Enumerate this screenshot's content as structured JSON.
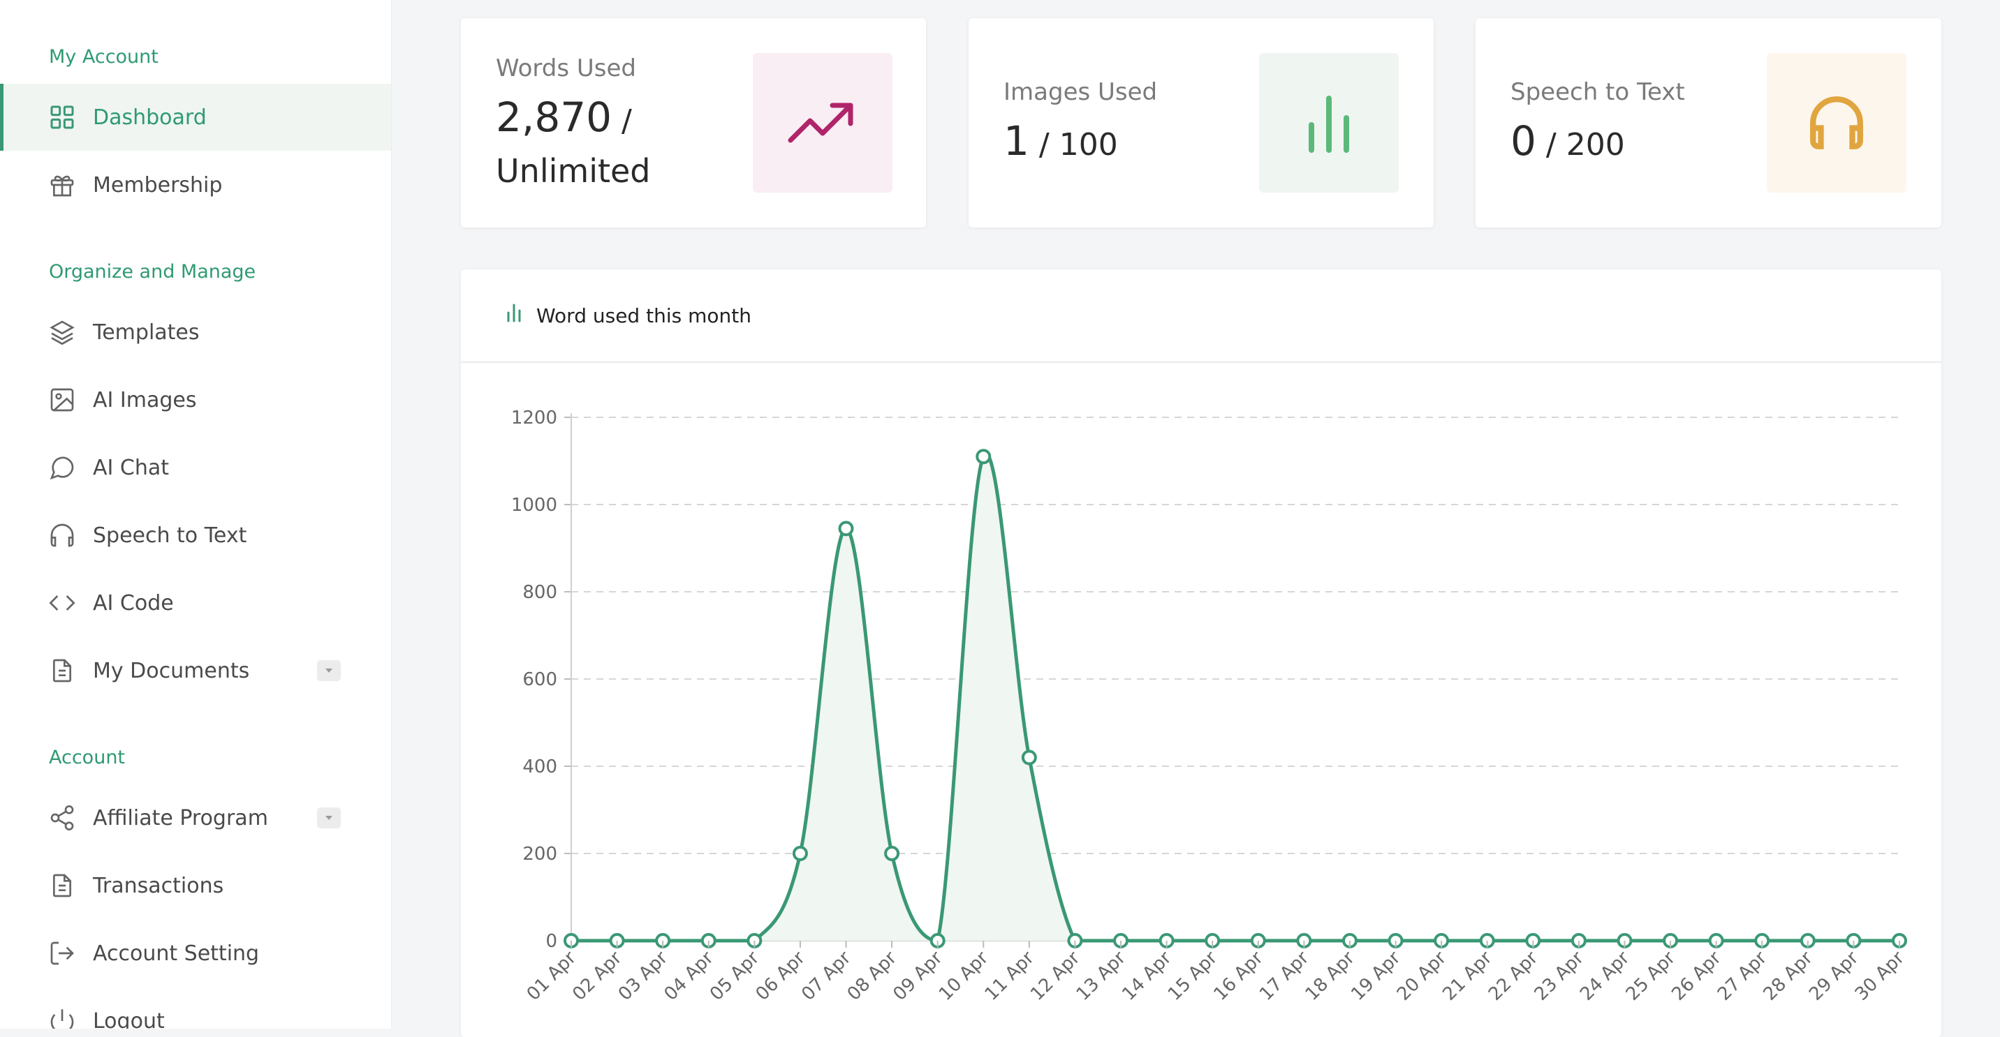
{
  "sidebar": {
    "sections": [
      {
        "title": "My Account"
      },
      {
        "title": "Organize and Manage"
      },
      {
        "title": "Account"
      }
    ],
    "items": [
      {
        "label": "Dashboard",
        "icon": "grid-icon",
        "active": true
      },
      {
        "label": "Membership",
        "icon": "gift-icon"
      },
      {
        "label": "Templates",
        "icon": "layers-icon"
      },
      {
        "label": "AI Images",
        "icon": "image-icon"
      },
      {
        "label": "AI Chat",
        "icon": "chat-bubble-icon"
      },
      {
        "label": "Speech to Text",
        "icon": "headphones-icon"
      },
      {
        "label": "AI Code",
        "icon": "code-icon"
      },
      {
        "label": "My Documents",
        "icon": "document-icon",
        "dropdown": true
      },
      {
        "label": "Affiliate Program",
        "icon": "share-icon",
        "dropdown": true
      },
      {
        "label": "Transactions",
        "icon": "document-icon"
      },
      {
        "label": "Account Setting",
        "icon": "logout-arrow-icon"
      },
      {
        "label": "Logout",
        "icon": "power-icon"
      }
    ]
  },
  "cards": {
    "words": {
      "label": "Words Used",
      "value": "2,870",
      "limit": "Unlimited",
      "icon": "trend-up-icon",
      "accent": "#b0246a",
      "bg": "#f9eef4"
    },
    "images": {
      "label": "Images Used",
      "value": "1",
      "limit": "100",
      "icon": "bar-chart-icon",
      "accent": "#5cb87a",
      "bg": "#eff6f1"
    },
    "speech": {
      "label": "Speech to Text",
      "value": "0",
      "limit": "200",
      "icon": "headphones-icon",
      "accent": "#e0a53e",
      "bg": "#fdf6ec"
    }
  },
  "chart_panel": {
    "title": "Word used this month"
  },
  "chart_data": {
    "type": "area",
    "title": "Word used this month",
    "xlabel": "",
    "ylabel": "",
    "categories": [
      "01 Apr",
      "02 Apr",
      "03 Apr",
      "04 Apr",
      "05 Apr",
      "06 Apr",
      "07 Apr",
      "08 Apr",
      "09 Apr",
      "10 Apr",
      "11 Apr",
      "12 Apr",
      "13 Apr",
      "14 Apr",
      "15 Apr",
      "16 Apr",
      "17 Apr",
      "18 Apr",
      "19 Apr",
      "20 Apr",
      "21 Apr",
      "22 Apr",
      "23 Apr",
      "24 Apr",
      "25 Apr",
      "26 Apr",
      "27 Apr",
      "28 Apr",
      "29 Apr",
      "30 Apr"
    ],
    "values": [
      0,
      0,
      0,
      0,
      0,
      200,
      945,
      200,
      0,
      1110,
      420,
      0,
      0,
      0,
      0,
      0,
      0,
      0,
      0,
      0,
      0,
      0,
      0,
      0,
      0,
      0,
      0,
      0,
      0,
      0
    ],
    "ylim": [
      0,
      1200
    ],
    "yticks": [
      0,
      200,
      400,
      600,
      800,
      1000,
      1200
    ],
    "grid": true,
    "color": "#3a9874",
    "fill": "#f0f6f2"
  }
}
